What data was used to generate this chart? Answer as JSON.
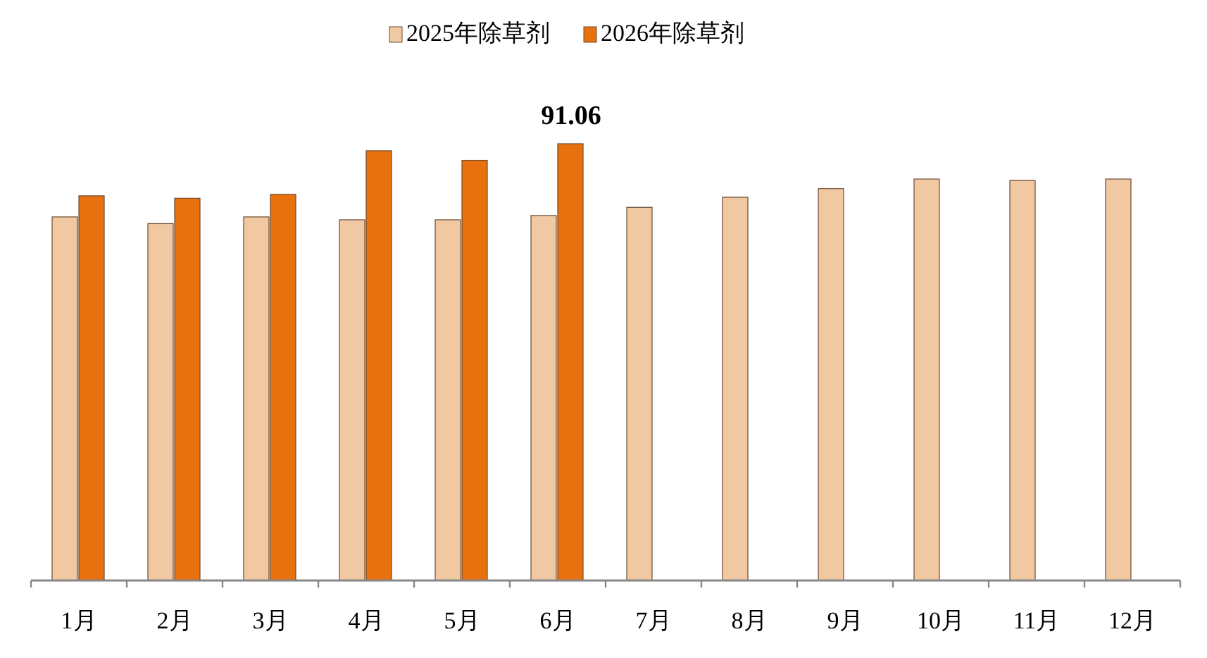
{
  "chart_data": {
    "type": "bar",
    "categories": [
      "1月",
      "2月",
      "3月",
      "4月",
      "5月",
      "6月",
      "7月",
      "8月",
      "9月",
      "10月",
      "11月",
      "12月"
    ],
    "series": [
      {
        "name": "2025年除草剂",
        "color": "#f0c8a2",
        "values": [
          75.8,
          74.4,
          75.8,
          75.2,
          75.2,
          76.1,
          77.8,
          79.9,
          81.7,
          83.7,
          83.4,
          83.7
        ]
      },
      {
        "name": "2026年除草剂",
        "color": "#e8700e",
        "values": [
          80.2,
          79.7,
          80.5,
          89.6,
          87.6,
          91.06,
          null,
          null,
          null,
          null,
          null,
          null
        ],
        "value_labels": [
          null,
          null,
          null,
          null,
          null,
          "91.06",
          null,
          null,
          null,
          null,
          null,
          null
        ]
      }
    ],
    "legend": "top",
    "grid": false
  }
}
